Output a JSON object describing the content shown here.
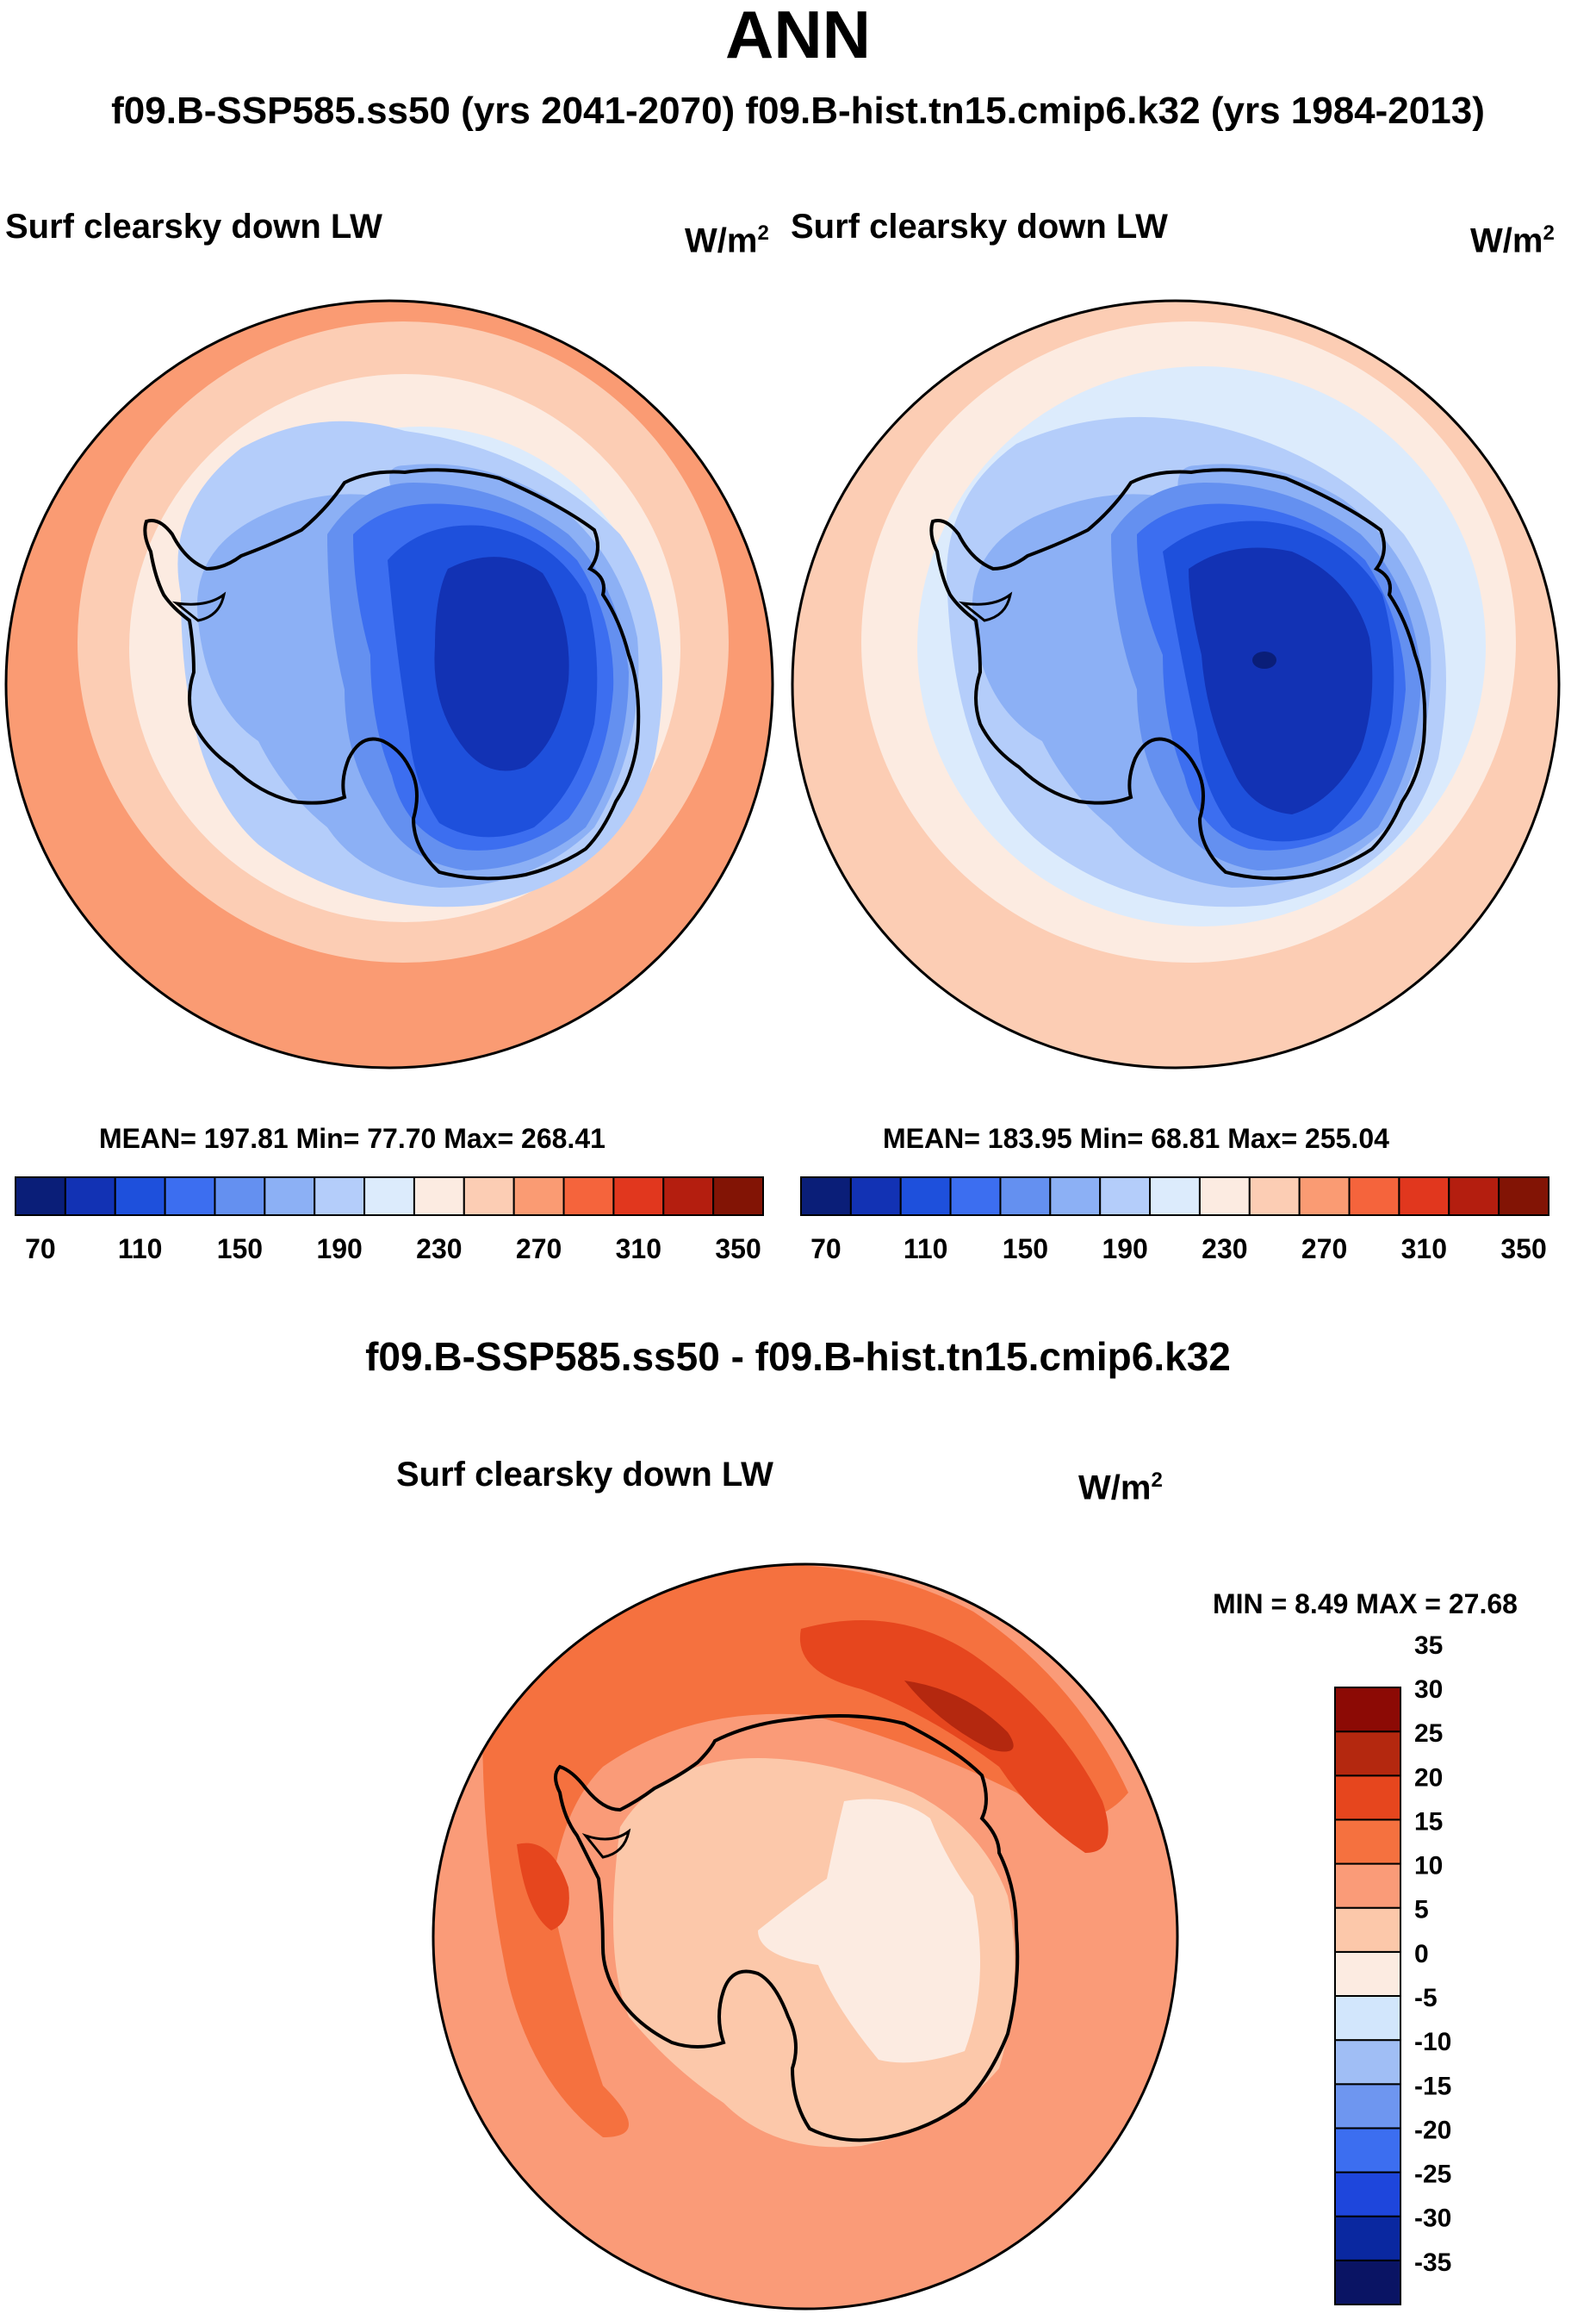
{
  "title": "ANN",
  "subtitle": "f09.B-SSP585.ss50 (yrs 2041-2070)  f09.B-hist.tn15.cmip6.k32 (yrs 1984-2013)",
  "panels": [
    {
      "variable": "Surf clearsky down LW",
      "units_base": "W/m",
      "units_exp": "2",
      "stats": "MEAN= 197.81  Min=  77.70  Max= 268.41",
      "mean": 197.81,
      "min": 77.7,
      "max": 268.41
    },
    {
      "variable": "Surf clearsky down LW",
      "units_base": "W/m",
      "units_exp": "2",
      "stats": "MEAN= 183.95  Min=  68.81  Max= 255.04",
      "mean": 183.95,
      "min": 68.81,
      "max": 255.04
    }
  ],
  "diff_panel": {
    "title": "f09.B-SSP585.ss50 - f09.B-hist.tn15.cmip6.k32",
    "variable": "Surf clearsky down LW",
    "units_base": "W/m",
    "units_exp": "2",
    "stats": "MIN =   8.49 MAX =  27.68",
    "min": 8.49,
    "max": 27.68
  },
  "colorbar_main": {
    "colors": [
      "#0a1e78",
      "#1232b4",
      "#1e50dc",
      "#3c6ef0",
      "#6490f0",
      "#8cb0f5",
      "#b4cdfa",
      "#dcebfc",
      "#fcebe1",
      "#fccdb4",
      "#fa9b73",
      "#f5643c",
      "#e1371e",
      "#b41e0f",
      "#821405"
    ],
    "labels": [
      "70",
      "110",
      "150",
      "190",
      "230",
      "270",
      "310",
      "350"
    ]
  },
  "colorbar_diff": {
    "colors": [
      "#0a1464",
      "#0a28a0",
      "#1e46dc",
      "#3c6ef0",
      "#6e96f0",
      "#a0bef5",
      "#d2e6fc",
      "#fcebe1",
      "#fcc8aa",
      "#fa9b78",
      "#f5713f",
      "#e6461e",
      "#b4280f",
      "#8c0a05"
    ],
    "labels": [
      "-35",
      "-30",
      "-25",
      "-20",
      "-15",
      "-10",
      "-5",
      "0",
      "5",
      "10",
      "15",
      "20",
      "25",
      "30",
      "35"
    ]
  },
  "chart_data": [
    {
      "type": "heatmap",
      "title": "Surf clearsky down LW",
      "units": "W/m^2",
      "projection": "south polar stereographic",
      "region": "Antarctica / Southern Ocean",
      "contour_levels": [
        70,
        90,
        110,
        130,
        150,
        170,
        190,
        210,
        230,
        250,
        270,
        290,
        310,
        330,
        350
      ],
      "mean": 197.81,
      "min": 77.7,
      "max": 268.41
    },
    {
      "type": "heatmap",
      "title": "Surf clearsky down LW",
      "units": "W/m^2",
      "projection": "south polar stereographic",
      "region": "Antarctica / Southern Ocean",
      "contour_levels": [
        70,
        90,
        110,
        130,
        150,
        170,
        190,
        210,
        230,
        250,
        270,
        290,
        310,
        330,
        350
      ],
      "mean": 183.95,
      "min": 68.81,
      "max": 255.04
    },
    {
      "type": "heatmap",
      "title": "f09.B-SSP585.ss50 - f09.B-hist.tn15.cmip6.k32",
      "units": "W/m^2",
      "projection": "south polar stereographic",
      "contour_levels": [
        -35,
        -30,
        -25,
        -20,
        -15,
        -10,
        -5,
        0,
        5,
        10,
        15,
        20,
        25,
        30,
        35
      ],
      "min": 8.49,
      "max": 27.68
    }
  ]
}
